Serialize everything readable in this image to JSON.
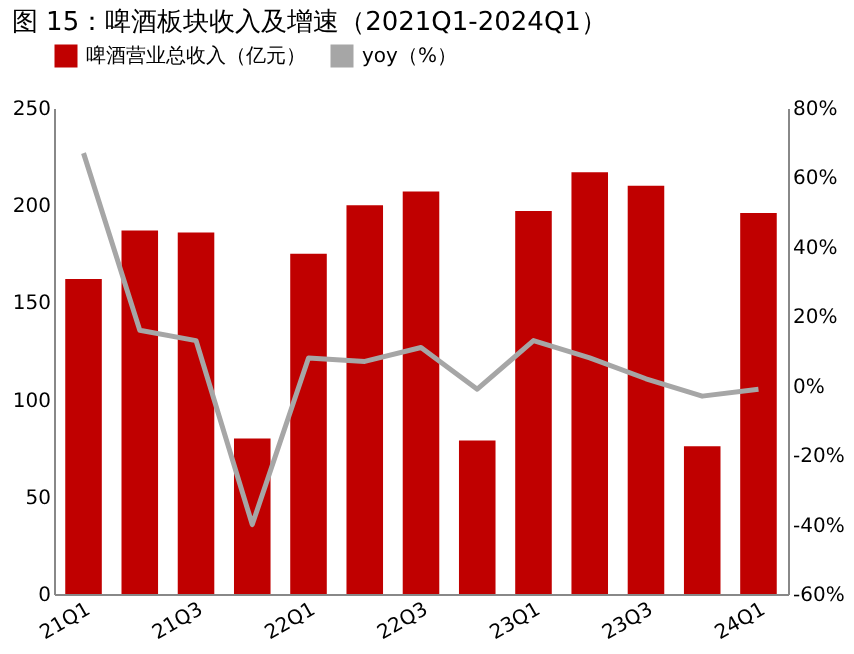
{
  "chart_data": {
    "type": "bar",
    "title": "图 15：啤酒板块收入及增速（2021Q1-2024Q1）",
    "categories": [
      "21Q1",
      null,
      "21Q3",
      null,
      "22Q1",
      null,
      "22Q3",
      null,
      "23Q1",
      null,
      "23Q3",
      null,
      "24Q1"
    ],
    "series": [
      {
        "name": "啤酒营业总收入（亿元）",
        "color": "#c00000",
        "values": [
          162,
          187,
          186,
          80,
          175,
          200,
          207,
          79,
          197,
          217,
          210,
          76,
          196
        ]
      },
      {
        "name": "yoy（%）",
        "color": "#a6a6a6",
        "type": "line",
        "axis": "y2",
        "values": [
          67,
          16,
          13,
          -40,
          8,
          7,
          11,
          -1,
          13,
          8,
          2,
          -3,
          -1
        ]
      }
    ],
    "ylim": [
      0,
      250
    ],
    "yticks": [
      0,
      50,
      100,
      150,
      200,
      250
    ],
    "y2lim": [
      -60,
      80
    ],
    "y2ticks": [
      {
        "value": -60,
        "label": "-60%"
      },
      {
        "value": -40,
        "label": "-40%"
      },
      {
        "value": -20,
        "label": "-20%"
      },
      {
        "value": 0,
        "label": "0%"
      },
      {
        "value": 20,
        "label": "20%"
      },
      {
        "value": 40,
        "label": "40%"
      },
      {
        "value": 60,
        "label": "60%"
      },
      {
        "value": 80,
        "label": "80%"
      }
    ],
    "grid": false,
    "legend": "top",
    "marker": "none",
    "line_style": "solid"
  }
}
